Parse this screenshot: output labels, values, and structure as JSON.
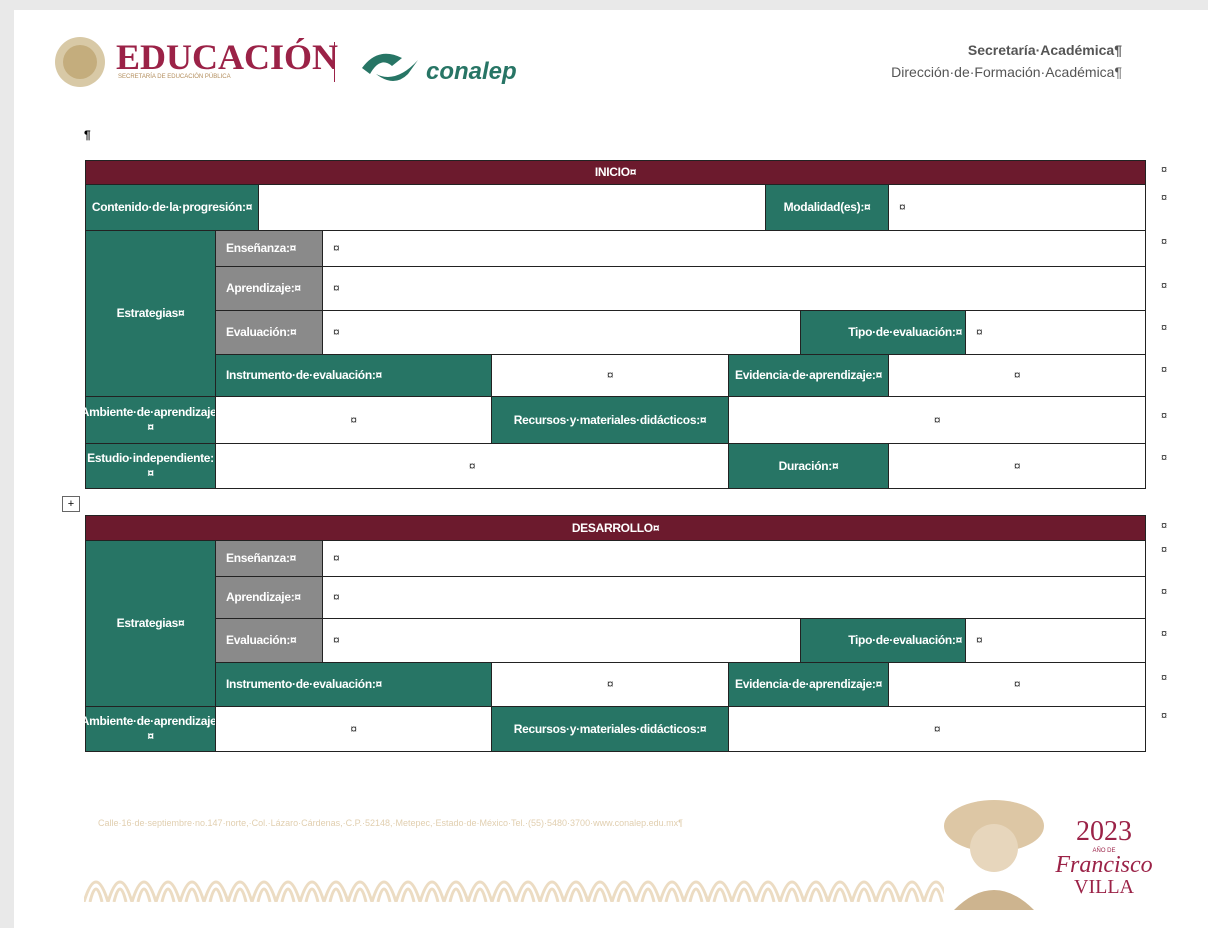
{
  "header": {
    "logo_text": "EDUCACIÓN",
    "logo_sub": "SECRETARÍA DE EDUCACIÓN PÚBLICA",
    "conalep": "conalep",
    "office": "Secretaría·Académica¶",
    "direction": "Dirección·de·Formación·Académica¶"
  },
  "pilcrow": "¶",
  "sections": [
    {
      "cells": [
        "INICIO¤",
        "Contenido·de·la·progresión:¤",
        "Modalidad(es):¤",
        "¤",
        "Estrategias¤",
        "Enseñanza:¤",
        "¤",
        "Aprendizaje:¤",
        "¤",
        "Evaluación:¤",
        "¤",
        "Tipo·de·evaluación:¤",
        "¤",
        "Instrumento·de·evaluación:¤",
        "¤",
        "Evidencia·de·aprendizaje:¤",
        "¤",
        "Ambiente·de·aprendizaje:¤",
        "¤",
        "Recursos·y·materiales·didácticos:¤",
        "¤",
        "Estudio·independiente:¤",
        "¤",
        "Duración:¤",
        "¤"
      ],
      "row_ends": [
        "¤",
        "¤",
        "¤",
        "¤",
        "¤",
        "¤",
        "¤",
        "¤"
      ]
    },
    {
      "cells": [
        "DESARROLLO¤",
        "Estrategias¤",
        "Enseñanza:¤",
        "¤",
        "Aprendizaje:¤",
        "¤",
        "Evaluación:¤",
        "¤",
        "Tipo·de·evaluación:¤",
        "¤",
        "Instrumento·de·evaluación:¤",
        "¤",
        "Evidencia·de·aprendizaje:¤",
        "¤",
        "Ambiente·de·aprendizaje:¤",
        "¤",
        "Recursos·y·materiales·didácticos:¤",
        "¤"
      ],
      "row_ends": [
        "¤",
        "¤",
        "¤",
        "¤",
        "¤",
        "¤"
      ]
    }
  ],
  "footer": {
    "address": "Calle·16·de·septiembre·no.147·norte,·Col.·Lázaro·Cárdenas,·C.P.·52148,·Metepec,·Estado·de·México·Tel.·(55)·5480·3700·www.conalep.edu.mx¶",
    "year": "2023",
    "year_sub": "AÑO DE",
    "name": "Francisco",
    "surname": "VILLA"
  }
}
